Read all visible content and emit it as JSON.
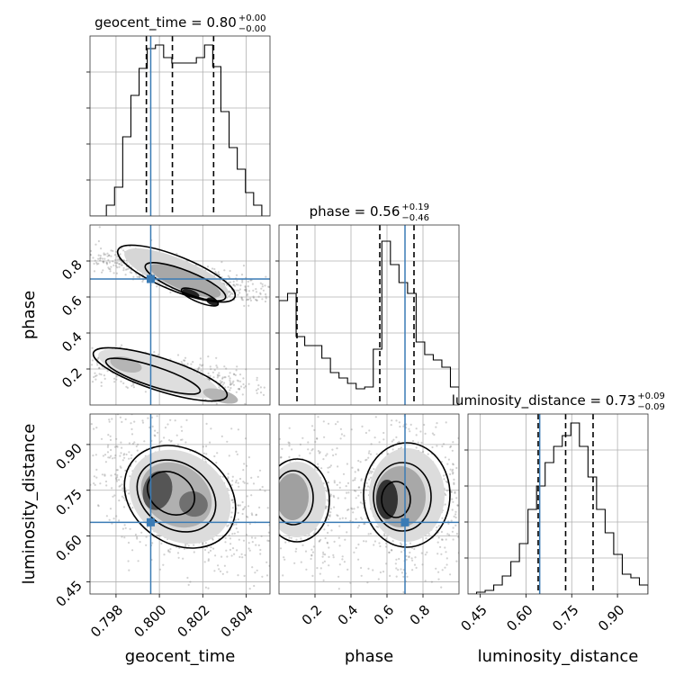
{
  "chart_data": {
    "type": "corner",
    "parameters": [
      "geocent_time",
      "phase",
      "luminosity_distance"
    ],
    "titles": [
      {
        "param": "geocent_time",
        "label": "geocent_time = 0.80",
        "plus": "+0.00",
        "minus": "−0.00"
      },
      {
        "param": "phase",
        "label": "phase = 0.56",
        "plus": "+0.19",
        "minus": "−0.46"
      },
      {
        "param": "luminosity_distance",
        "label": "luminosity_distance = 0.73",
        "plus": "+0.09",
        "minus": "−0.09"
      }
    ],
    "ranges": {
      "geocent_time": [
        0.7968,
        0.8051
      ],
      "phase": [
        0.0,
        1.0
      ],
      "luminosity_distance": [
        0.41,
        1.0
      ]
    },
    "tick_labels": {
      "geocent_time": [
        "0.798",
        "0.800",
        "0.802",
        "0.804"
      ],
      "phase": [
        "0.2",
        "0.4",
        "0.6",
        "0.8"
      ],
      "luminosity_distance": [
        "0.45",
        "0.60",
        "0.75",
        "0.90"
      ]
    },
    "ticks": {
      "geocent_time": [
        0.798,
        0.8,
        0.802,
        0.804
      ],
      "phase": [
        0.2,
        0.4,
        0.6,
        0.8
      ],
      "luminosity_distance": [
        0.45,
        0.6,
        0.75,
        0.9
      ]
    },
    "truths": {
      "geocent_time": 0.7996,
      "phase": 0.7,
      "luminosity_distance": 0.645
    },
    "quantiles": {
      "geocent_time": [
        0.7994,
        0.8006,
        0.8025
      ],
      "phase": [
        0.1,
        0.56,
        0.75
      ],
      "luminosity_distance": [
        0.64,
        0.73,
        0.82
      ]
    },
    "histograms": {
      "geocent_time": [
        0,
        0,
        0.06,
        0.16,
        0.44,
        0.67,
        0.82,
        0.93,
        0.95,
        0.88,
        0.85,
        0.85,
        0.85,
        0.88,
        0.95,
        0.83,
        0.58,
        0.38,
        0.26,
        0.13,
        0.06,
        0
      ],
      "phase": [
        0.58,
        0.62,
        0.38,
        0.33,
        0.33,
        0.26,
        0.18,
        0.15,
        0.12,
        0.09,
        0.1,
        0.31,
        0.91,
        0.78,
        0.68,
        0.62,
        0.35,
        0.28,
        0.25,
        0.21,
        0.1
      ],
      "luminosity_distance": [
        0,
        0.01,
        0.02,
        0.05,
        0.1,
        0.18,
        0.28,
        0.47,
        0.6,
        0.73,
        0.82,
        0.88,
        0.95,
        0.82,
        0.65,
        0.47,
        0.34,
        0.22,
        0.11,
        0.09,
        0.05
      ]
    },
    "xlabels": [
      "geocent_time",
      "phase",
      "luminosity_distance"
    ],
    "ylabels": [
      "phase",
      "luminosity_distance"
    ],
    "grid": true
  }
}
